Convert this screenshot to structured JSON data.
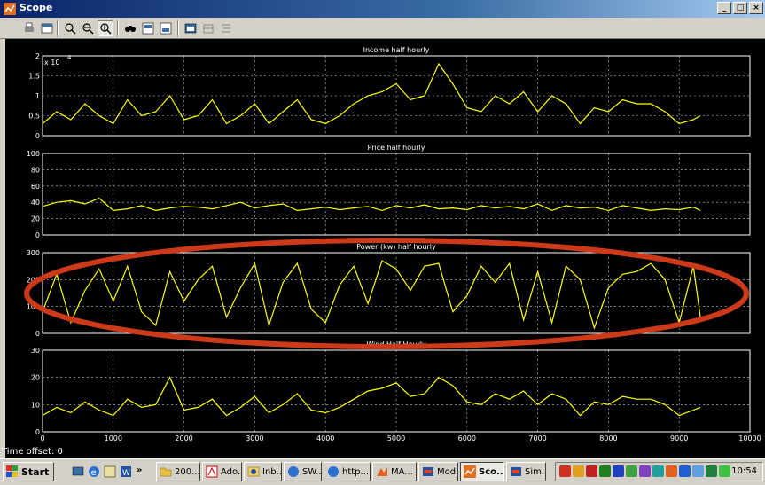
{
  "window": {
    "title": "Scope"
  },
  "toolbar": {
    "buttons": [
      {
        "name": "print-icon",
        "label": "Print"
      },
      {
        "name": "parameters-icon",
        "label": "Parameters"
      },
      {
        "name": "zoom-icon",
        "label": "Zoom"
      },
      {
        "name": "zoom-x-icon",
        "label": "Zoom X-axis"
      },
      {
        "name": "zoom-y-icon",
        "label": "Zoom Y-axis"
      },
      {
        "name": "autoscale-icon",
        "label": "Autoscale"
      },
      {
        "name": "save-axes-icon",
        "label": "Save axes settings"
      },
      {
        "name": "restore-axes-icon",
        "label": "Restore saved axes settings"
      },
      {
        "name": "floating-scope-icon",
        "label": "Floating scope"
      },
      {
        "name": "lock-axes-icon",
        "label": "Lock axes selection"
      },
      {
        "name": "signal-selection-icon",
        "label": "Signal selection"
      }
    ]
  },
  "scope": {
    "time_offset_label": "Time offset:",
    "time_offset_value": "0",
    "trace_color": "#ffff00",
    "highlight_color": "#cc3a1a"
  },
  "chart_data": [
    {
      "type": "line",
      "title": "Income half hourly",
      "exponent_label": "x 10",
      "exponent_power": "4",
      "xlim": [
        0,
        10000
      ],
      "ylim": [
        0,
        2
      ],
      "yticks": [
        "0",
        "0.5",
        "1",
        "1.5",
        "2"
      ],
      "grid": true,
      "x": [
        0,
        200,
        400,
        600,
        800,
        1000,
        1200,
        1400,
        1600,
        1800,
        2000,
        2200,
        2400,
        2600,
        2800,
        3000,
        3200,
        3400,
        3600,
        3800,
        4000,
        4200,
        4400,
        4600,
        4800,
        5000,
        5200,
        5400,
        5600,
        5800,
        6000,
        6200,
        6400,
        6600,
        6800,
        7000,
        7200,
        7400,
        7600,
        7800,
        8000,
        8200,
        8400,
        8600,
        8800,
        9000,
        9200,
        9300
      ],
      "y": [
        0.3,
        0.6,
        0.4,
        0.8,
        0.5,
        0.3,
        0.9,
        0.5,
        0.6,
        1.0,
        0.4,
        0.5,
        0.9,
        0.3,
        0.5,
        0.8,
        0.3,
        0.6,
        0.9,
        0.4,
        0.3,
        0.5,
        0.8,
        1.0,
        1.1,
        1.3,
        0.9,
        1.0,
        1.8,
        1.3,
        0.7,
        0.6,
        1.0,
        0.8,
        1.1,
        0.6,
        1.0,
        0.8,
        0.3,
        0.7,
        0.6,
        0.9,
        0.8,
        0.8,
        0.6,
        0.3,
        0.4,
        0.5
      ]
    },
    {
      "type": "line",
      "title": "Price half hourly",
      "xlim": [
        0,
        10000
      ],
      "ylim": [
        0,
        100
      ],
      "yticks": [
        "0",
        "20",
        "40",
        "60",
        "80",
        "100"
      ],
      "grid": true,
      "x": [
        0,
        200,
        400,
        600,
        800,
        1000,
        1200,
        1400,
        1600,
        1800,
        2000,
        2200,
        2400,
        2600,
        2800,
        3000,
        3200,
        3400,
        3600,
        3800,
        4000,
        4200,
        4400,
        4600,
        4800,
        5000,
        5200,
        5400,
        5600,
        5800,
        6000,
        6200,
        6400,
        6600,
        6800,
        7000,
        7200,
        7400,
        7600,
        7800,
        8000,
        8200,
        8400,
        8600,
        8800,
        9000,
        9200,
        9300
      ],
      "y": [
        35,
        40,
        42,
        38,
        45,
        30,
        32,
        36,
        30,
        33,
        35,
        34,
        32,
        36,
        40,
        33,
        36,
        38,
        30,
        32,
        34,
        31,
        33,
        35,
        30,
        36,
        33,
        37,
        32,
        33,
        31,
        36,
        33,
        35,
        32,
        38,
        30,
        36,
        33,
        34,
        30,
        36,
        33,
        30,
        32,
        31,
        34,
        30
      ]
    },
    {
      "type": "line",
      "title": "Power (kw) half hourly",
      "xlim": [
        0,
        10000
      ],
      "ylim": [
        0,
        300
      ],
      "yticks": [
        "0",
        "100",
        "200",
        "300"
      ],
      "grid": true,
      "x": [
        0,
        200,
        400,
        600,
        800,
        1000,
        1200,
        1400,
        1600,
        1800,
        2000,
        2200,
        2400,
        2600,
        2800,
        3000,
        3200,
        3400,
        3600,
        3800,
        4000,
        4200,
        4400,
        4600,
        4800,
        5000,
        5200,
        5400,
        5600,
        5800,
        6000,
        6200,
        6400,
        6600,
        6800,
        7000,
        7200,
        7400,
        7600,
        7800,
        8000,
        8200,
        8400,
        8600,
        8800,
        9000,
        9200,
        9300
      ],
      "y": [
        80,
        220,
        40,
        160,
        240,
        120,
        250,
        80,
        30,
        230,
        120,
        200,
        250,
        60,
        170,
        260,
        30,
        190,
        260,
        90,
        40,
        180,
        250,
        110,
        270,
        240,
        160,
        250,
        260,
        80,
        140,
        250,
        190,
        260,
        50,
        230,
        40,
        250,
        200,
        20,
        170,
        220,
        230,
        260,
        200,
        40,
        250,
        60
      ]
    },
    {
      "type": "line",
      "title": "Wind Half Hourly",
      "xlim": [
        0,
        10000
      ],
      "ylim": [
        0,
        30
      ],
      "yticks": [
        "0",
        "10",
        "20",
        "30"
      ],
      "xticks": [
        "0",
        "1000",
        "2000",
        "3000",
        "4000",
        "5000",
        "6000",
        "7000",
        "8000",
        "9000",
        "10000"
      ],
      "grid": true,
      "x": [
        0,
        200,
        400,
        600,
        800,
        1000,
        1200,
        1400,
        1600,
        1800,
        2000,
        2200,
        2400,
        2600,
        2800,
        3000,
        3200,
        3400,
        3600,
        3800,
        4000,
        4200,
        4400,
        4600,
        4800,
        5000,
        5200,
        5400,
        5600,
        5800,
        6000,
        6200,
        6400,
        6600,
        6800,
        7000,
        7200,
        7400,
        7600,
        7800,
        8000,
        8200,
        8400,
        8600,
        8800,
        9000,
        9200,
        9300
      ],
      "y": [
        6,
        9,
        7,
        11,
        8,
        6,
        12,
        9,
        10,
        20,
        8,
        9,
        12,
        6,
        9,
        13,
        7,
        10,
        14,
        8,
        7,
        9,
        12,
        15,
        16,
        18,
        13,
        14,
        20,
        17,
        11,
        10,
        14,
        12,
        15,
        10,
        14,
        12,
        6,
        11,
        10,
        13,
        12,
        12,
        10,
        6,
        8,
        9
      ]
    }
  ],
  "taskbar": {
    "start_label": "Start",
    "tasks": [
      {
        "label": "200...",
        "icon": "folder-icon"
      },
      {
        "label": "Ado...",
        "icon": "acrobat-icon"
      },
      {
        "label": "Inb...",
        "icon": "outlook-icon"
      },
      {
        "label": "SW...",
        "icon": "browser-icon"
      },
      {
        "label": "http...",
        "icon": "browser-icon"
      },
      {
        "label": "MA...",
        "icon": "matlab-icon"
      },
      {
        "label": "Mod...",
        "icon": "simulink-icon"
      },
      {
        "label": "Sco...",
        "icon": "scope-icon",
        "active": true
      },
      {
        "label": "Sim...",
        "icon": "simulink-icon"
      }
    ],
    "overflow_label": "»",
    "clock": "10:54"
  }
}
